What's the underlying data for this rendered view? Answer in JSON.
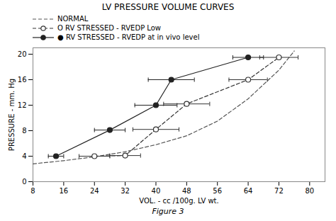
{
  "chart_data": {
    "type": "line",
    "title": "LV  PRESSURE  VOLUME  CURVES",
    "xlabel": "VOL. - cc /100g. LV wt.",
    "ylabel": "PRESSURE - mm. Hg",
    "caption": "Figure 3",
    "xlim": [
      8,
      84
    ],
    "ylim": [
      0,
      21
    ],
    "xticks": [
      8,
      16,
      24,
      32,
      40,
      48,
      56,
      64,
      72,
      80
    ],
    "yticks": [
      0,
      4,
      8,
      12,
      16,
      20
    ],
    "grid": false,
    "legend": "upper left",
    "series": [
      {
        "name": "NORMAL",
        "color": "#555555",
        "line_style": "dashed",
        "marker": "none",
        "x": [
          8,
          16,
          24,
          32,
          40,
          48,
          56,
          64,
          72,
          76
        ],
        "values": [
          2.8,
          3.3,
          3.9,
          4.7,
          5.8,
          7.2,
          9.5,
          13.0,
          17.5,
          20.5
        ]
      },
      {
        "name": "O RV STRESSED - RVEDP Low",
        "color": "#333333",
        "line_style": "dashed",
        "marker": "circle-open",
        "x": [
          24,
          32,
          40,
          48,
          64,
          72
        ],
        "values": [
          4.0,
          4.1,
          8.2,
          12.2,
          16.0,
          19.5
        ],
        "xerr": [
          4.0,
          4.0,
          6.0,
          6.0,
          5.0,
          5.0
        ]
      },
      {
        "name": "● RV STRESSED - RVEDP at in vivo level",
        "color": "#222222",
        "line_style": "solid",
        "marker": "circle",
        "x": [
          14,
          28,
          40,
          44,
          64
        ],
        "values": [
          4.0,
          8.1,
          12.0,
          16.0,
          19.5
        ],
        "xerr": [
          2.0,
          4.0,
          5.5,
          6.0,
          4.0
        ]
      }
    ]
  }
}
